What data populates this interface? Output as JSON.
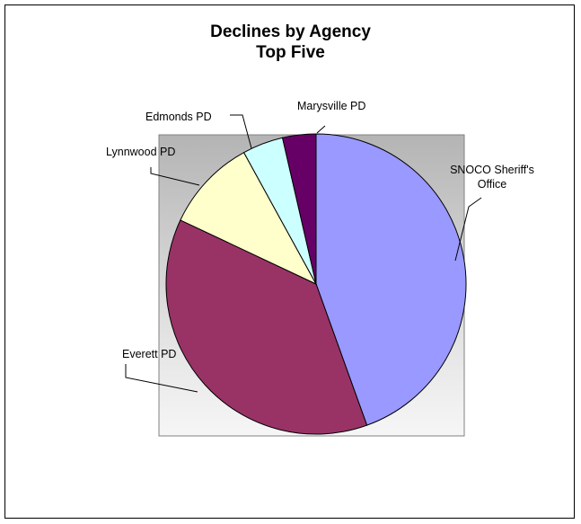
{
  "chart_data": {
    "type": "pie",
    "title": "Declines by Agency",
    "subtitle": "Top Five",
    "legend": "none",
    "start_angle_deg": 0,
    "direction": "clockwise",
    "slices": [
      {
        "label": [
          "SNOCO Sheriff's",
          "Office"
        ],
        "value": 44.5,
        "color": "#9999ff"
      },
      {
        "label": [
          "Everett PD"
        ],
        "value": 37.5,
        "color": "#993366"
      },
      {
        "label": [
          "Lynnwood PD"
        ],
        "value": 10.0,
        "color": "#ffffcc"
      },
      {
        "label": [
          "Edmonds PD"
        ],
        "value": 4.4,
        "color": "#ccffff"
      },
      {
        "label": [
          "Marysville PD"
        ],
        "value": 3.6,
        "color": "#660066"
      }
    ]
  }
}
